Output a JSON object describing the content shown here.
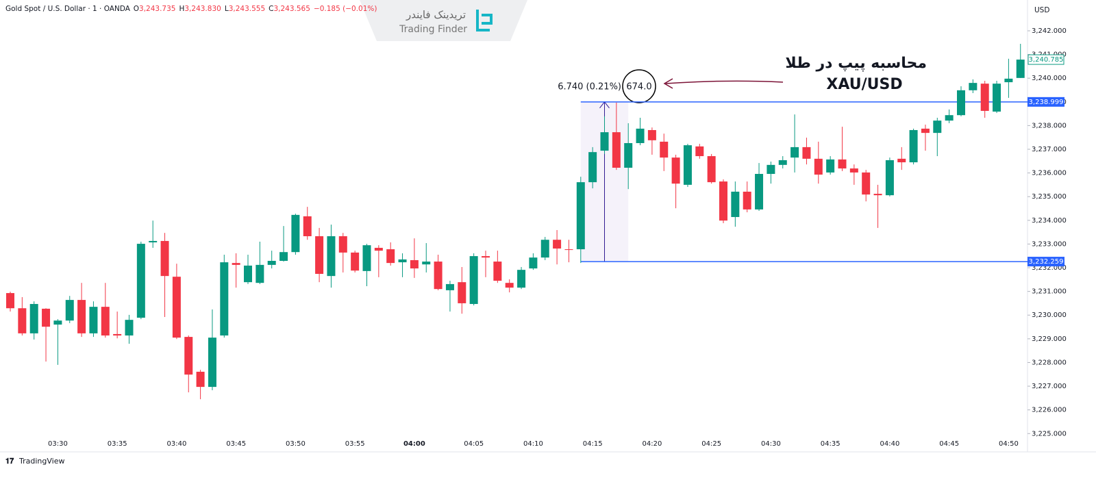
{
  "chart_data": {
    "type": "candlestick",
    "header": {
      "symbol": "Gold Spot / U.S. Dollar · 1 · OANDA",
      "ohlc": [
        {
          "key": "O",
          "text": "3,243.735"
        },
        {
          "key": "H",
          "text": "3,243.830"
        },
        {
          "key": "L",
          "text": "3,243.555"
        },
        {
          "key": "C",
          "text": "3,243.565"
        }
      ],
      "change": "−0.185 (−0.01%)"
    },
    "currency": "USD",
    "watermark": {
      "fa": "تریدینک فایندر",
      "en": "Trading Finder"
    },
    "annotation": {
      "title": "محاسبه پیپ در طلا",
      "subtitle": "XAU/USD",
      "measure": "6.740 (0.21%)",
      "pips": "674.0"
    },
    "footer": "TradingView",
    "up_color": "#089981",
    "down_color": "#f23645",
    "categories": [
      null,
      null,
      null,
      null,
      "03:30",
      null,
      null,
      null,
      null,
      "03:35",
      null,
      null,
      null,
      null,
      "03:40",
      null,
      null,
      null,
      null,
      "03:45",
      null,
      null,
      null,
      null,
      "03:50",
      null,
      null,
      null,
      null,
      "03:55",
      null,
      null,
      null,
      null,
      "04:00",
      null,
      null,
      null,
      null,
      "04:05",
      null,
      null,
      null,
      null,
      "04:10",
      null,
      null,
      null,
      null,
      "04:15",
      null,
      null,
      null,
      null,
      "04:20",
      null,
      null,
      null,
      null,
      "04:25",
      null,
      null,
      null,
      null,
      "04:30",
      null,
      null,
      null,
      null,
      "04:35",
      null,
      null,
      null,
      null,
      "04:40",
      null,
      null,
      null,
      null,
      "04:45",
      null,
      null,
      null,
      null,
      "04:50",
      null
    ],
    "open": [
      3230.93,
      3230.29,
      3229.23,
      3230.27,
      3229.6,
      3229.77,
      3230.64,
      3229.23,
      3230.35,
      3229.2,
      3229.14,
      3229.89,
      3233.07,
      3233.13,
      3231.62,
      3229.08,
      3227.61,
      3226.97,
      3229.14,
      3232.2,
      3231.39,
      3231.36,
      3232.12,
      3232.29,
      3232.66,
      3234.17,
      3233.33,
      3231.65,
      3233.33,
      3232.64,
      3231.86,
      3232.84,
      3232.78,
      3232.23,
      3232.32,
      3232.14,
      3232.26,
      3231.05,
      3231.39,
      3230.47,
      3232.49,
      3232.26,
      3231.36,
      3231.16,
      3231.97,
      3232.43,
      3233.18,
      3232.78,
      3232.78,
      3235.61,
      3236.94,
      3237.72,
      3236.22,
      3237.26,
      3237.81,
      3237.32,
      3236.65,
      3235.5,
      3237.12,
      3236.71,
      3235.64,
      3234.14,
      3235.21,
      3234.46,
      3235.96,
      3236.34,
      3236.65,
      3237.09,
      3236.6,
      3236.02,
      3236.57,
      3236.19,
      3236.02,
      3235.12,
      3235.06,
      3236.6,
      3236.45,
      3237.87,
      3237.69,
      3238.21,
      3238.44,
      3239.49,
      3239.77,
      3238.59,
      3239.83,
      3240.01
    ],
    "high": [
      3230.99,
      3230.76,
      3230.58,
      3230.29,
      3229.83,
      3230.81,
      3231.36,
      3230.58,
      3231.36,
      3230.15,
      3230.01,
      3233.1,
      3233.99,
      3233.47,
      3232.17,
      3229.14,
      3227.69,
      3230.24,
      3232.55,
      3232.61,
      3232.55,
      3233.1,
      3232.72,
      3233.76,
      3234.28,
      3234.57,
      3233.68,
      3233.82,
      3233.47,
      3232.72,
      3233.01,
      3232.95,
      3233.07,
      3232.61,
      3233.24,
      3233.04,
      3232.55,
      3231.45,
      3232.03,
      3232.61,
      3232.72,
      3232.72,
      3231.51,
      3232.03,
      3232.61,
      3233.3,
      3233.59,
      3233.18,
      3235.84,
      3237.09,
      3238.39,
      3238.97,
      3238.1,
      3238.33,
      3237.92,
      3237.66,
      3236.77,
      3237.23,
      3237.23,
      3236.8,
      3235.73,
      3235.64,
      3235.64,
      3236.42,
      3236.48,
      3236.71,
      3238.47,
      3237.49,
      3237.32,
      3236.71,
      3237.95,
      3236.36,
      3236.13,
      3235.5,
      3236.65,
      3237.09,
      3237.87,
      3238.04,
      3238.33,
      3238.68,
      3239.66,
      3239.95,
      3239.89,
      3239.89,
      3240.82,
      3241.45
    ],
    "low": [
      3230.15,
      3229.14,
      3228.97,
      3228.04,
      3227.9,
      3229.66,
      3229.08,
      3229.08,
      3229.05,
      3229.02,
      3228.79,
      3229.83,
      3232.84,
      3229.92,
      3228.99,
      3226.74,
      3226.45,
      3226.83,
      3229.05,
      3231.16,
      3231.31,
      3231.31,
      3231.97,
      3232.26,
      3232.55,
      3233.18,
      3231.39,
      3231.16,
      3231.8,
      3231.8,
      3231.22,
      3231.6,
      3232.09,
      3231.6,
      3231.57,
      3231.8,
      3231.05,
      3230.15,
      3230.06,
      3230.41,
      3231.6,
      3231.36,
      3230.96,
      3231.1,
      3231.91,
      3232.32,
      3232.14,
      3232.23,
      3232.2,
      3235.35,
      3236.8,
      3236.13,
      3235.32,
      3237.17,
      3236.77,
      3236.08,
      3234.51,
      3235.41,
      3236.6,
      3235.55,
      3233.88,
      3233.73,
      3234.34,
      3234.4,
      3235.55,
      3236.19,
      3236.02,
      3236.36,
      3235.55,
      3235.93,
      3236.08,
      3235.5,
      3234.8,
      3233.68,
      3235.01,
      3236.13,
      3236.36,
      3236.94,
      3236.71,
      3238.1,
      3238.39,
      3239.37,
      3238.33,
      3238.53,
      3239.17,
      3240.01
    ],
    "close": [
      3230.29,
      3229.23,
      3230.47,
      3229.51,
      3229.77,
      3230.64,
      3229.23,
      3230.35,
      3229.14,
      3229.14,
      3229.8,
      3233.01,
      3233.13,
      3231.65,
      3229.05,
      3227.49,
      3226.97,
      3229.05,
      3232.23,
      3232.12,
      3232.09,
      3232.12,
      3232.29,
      3232.66,
      3234.23,
      3233.33,
      3231.74,
      3233.33,
      3232.64,
      3231.88,
      3232.95,
      3232.72,
      3232.2,
      3232.35,
      3231.97,
      3232.26,
      3231.1,
      3231.31,
      3230.5,
      3232.49,
      3232.43,
      3231.45,
      3231.16,
      3231.91,
      3232.43,
      3233.18,
      3232.81,
      3232.75,
      3235.61,
      3236.88,
      3237.72,
      3236.22,
      3237.26,
      3237.87,
      3237.38,
      3236.65,
      3235.55,
      3237.17,
      3236.71,
      3235.61,
      3233.99,
      3235.21,
      3234.46,
      3235.96,
      3236.34,
      3236.54,
      3237.09,
      3236.6,
      3235.93,
      3236.57,
      3236.19,
      3236.02,
      3235.09,
      3235.06,
      3236.54,
      3236.45,
      3237.81,
      3237.69,
      3238.21,
      3238.44,
      3239.49,
      3239.8,
      3238.62,
      3239.77,
      3239.98,
      3240.785
    ],
    "ylim": [
      3224.95,
      3243.3
    ],
    "yticks": [
      {
        "value": 3225,
        "label": "3,225.000"
      },
      {
        "value": 3226,
        "label": "3,226.000"
      },
      {
        "value": 3227,
        "label": "3,227.000"
      },
      {
        "value": 3228,
        "label": "3,228.000"
      },
      {
        "value": 3229,
        "label": "3,229.000"
      },
      {
        "value": 3230,
        "label": "3,230.000"
      },
      {
        "value": 3231,
        "label": "3,231.000"
      },
      {
        "value": 3232,
        "label": "3,232.000"
      },
      {
        "value": 3233,
        "label": "3,233.000"
      },
      {
        "value": 3234,
        "label": "3,234.000"
      },
      {
        "value": 3235,
        "label": "3,235.000"
      },
      {
        "value": 3236,
        "label": "3,236.000"
      },
      {
        "value": 3237,
        "label": "3,237.000"
      },
      {
        "value": 3238,
        "label": "3,238.000"
      },
      {
        "value": 3239,
        "label": "3,239.000"
      },
      {
        "value": 3240,
        "label": "3,240.000"
      },
      {
        "value": 3241,
        "label": "3,241.000"
      },
      {
        "value": 3242,
        "label": "3,242.000"
      }
    ],
    "grid": false,
    "hlines": [
      {
        "value": 3238.999,
        "label": "3,238.999",
        "color": "#2962ff"
      },
      {
        "value": 3232.259,
        "label": "3,232.259",
        "color": "#2962ff"
      }
    ],
    "last_price": {
      "value": 3240.785,
      "label": "3,240.785",
      "color": "#089981"
    }
  }
}
